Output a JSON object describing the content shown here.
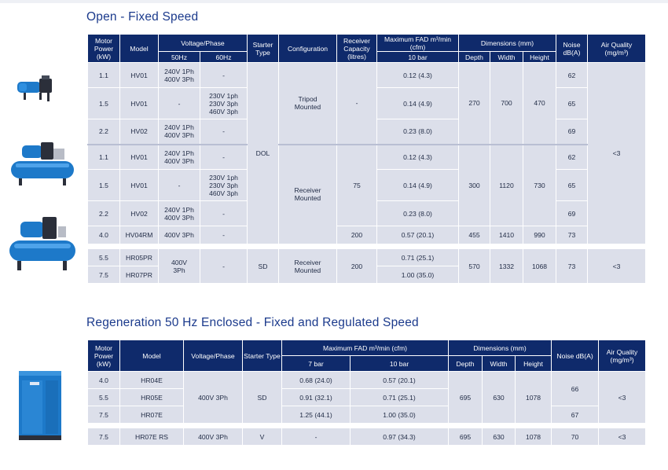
{
  "section1": {
    "title": "Open - Fixed Speed",
    "headers": {
      "motor_power": "Motor Power (kW)",
      "model": "Model",
      "voltage_phase": "Voltage/Phase",
      "hz50": "50Hz",
      "hz60": "60Hz",
      "starter_type": "Starter Type",
      "configuration": "Configuration",
      "receiver_capacity": "Receiver Capacity (litres)",
      "max_fad": "Maximum FAD m³/min (cfm)",
      "bar10": "10 bar",
      "dimensions": "Dimensions (mm)",
      "depth": "Depth",
      "width": "Width",
      "height": "Height",
      "noise": "Noise dB(A)",
      "air_quality": "Air Quality (mg/m³)"
    },
    "rows": [
      {
        "power": "1.1",
        "model": "HV01",
        "v50": "240V 1Ph\n400V 3Ph",
        "v60": "-",
        "fad": "0.12 (4.3)",
        "noise": "62"
      },
      {
        "power": "1.5",
        "model": "HV01",
        "v50": "-",
        "v60": "230V 1ph\n230V 3ph\n460V 3ph",
        "fad": "0.14 (4.9)",
        "noise": "65"
      },
      {
        "power": "2.2",
        "model": "HV02",
        "v50": "240V 1Ph\n400V 3Ph",
        "v60": "-",
        "fad": "0.23 (8.0)",
        "noise": "69"
      },
      {
        "power": "1.1",
        "model": "HV01",
        "v50": "240V 1Ph\n400V 3Ph",
        "v60": "-",
        "fad": "0.12 (4.3)",
        "noise": "62"
      },
      {
        "power": "1.5",
        "model": "HV01",
        "v50": "-",
        "v60": "230V 1ph\n230V 3ph\n460V 3ph",
        "fad": "0.14 (4.9)",
        "noise": "65"
      },
      {
        "power": "2.2",
        "model": "HV02",
        "v50": "240V 1Ph\n400V 3Ph",
        "v60": "-",
        "fad": "0.23 (8.0)",
        "noise": "69"
      },
      {
        "power": "4.0",
        "model": "HV04RM",
        "v50": "400V 3Ph",
        "v60": "-",
        "fad": "0.57 (20.1)",
        "noise": "73"
      }
    ],
    "starter_dol": "DOL",
    "config_tripod": "Tripod\nMounted",
    "config_receiver": "Receiver\nMounted",
    "receiver_dash": "-",
    "receiver_75": "75",
    "receiver_200": "200",
    "dims_a": {
      "depth": "270",
      "width": "700",
      "height": "470"
    },
    "dims_b": {
      "depth": "300",
      "width": "1120",
      "height": "730"
    },
    "dims_c": {
      "depth": "455",
      "width": "1410",
      "height": "990"
    },
    "air_quality_main": "<3",
    "group2": {
      "rows": [
        {
          "power": "5.5",
          "model": "HR05PR",
          "fad": "0.71 (25.1)"
        },
        {
          "power": "7.5",
          "model": "HR07PR",
          "fad": "1.00 (35.0)"
        }
      ],
      "v50": "400V\n3Ph",
      "v60": "-",
      "starter": "SD",
      "configuration": "Receiver\nMounted",
      "receiver": "200",
      "depth": "570",
      "width": "1332",
      "height": "1068",
      "noise": "73",
      "air_quality": "<3"
    }
  },
  "section2": {
    "title": "Regeneration 50 Hz Enclosed - Fixed and Regulated Speed",
    "headers": {
      "motor_power": "Motor Power (kW)",
      "model": "Model",
      "voltage_phase": "Voltage/Phase",
      "starter_type": "Starter Type",
      "max_fad": "Maximum FAD m³/min (cfm)",
      "bar7": "7 bar",
      "bar10": "10 bar",
      "dimensions": "Dimensions (mm)",
      "depth": "Depth",
      "width": "Width",
      "height": "Height",
      "noise": "Noise dB(A)",
      "air_quality": "Air Quality (mg/m³)"
    },
    "rows": [
      {
        "power": "4.0",
        "model": "HR04E",
        "bar7": "0.68 (24.0)",
        "bar10": "0.57 (20.1)"
      },
      {
        "power": "5.5",
        "model": "HR05E",
        "bar7": "0.91 (32.1)",
        "bar10": "0.71 (25.1)"
      },
      {
        "power": "7.5",
        "model": "HR07E",
        "bar7": "1.25 (44.1)",
        "bar10": "1.00 (35.0)"
      }
    ],
    "voltage": "400V 3Ph",
    "starter": "SD",
    "depth": "695",
    "width": "630",
    "height": "1078",
    "noise_a": "66",
    "noise_b": "67",
    "air_quality": "<3",
    "last_row": {
      "power": "7.5",
      "model": "HR07E RS",
      "voltage": "400V 3Ph",
      "starter": "V",
      "bar7": "-",
      "bar10": "0.97 (34.3)",
      "depth": "695",
      "width": "630",
      "height": "1078",
      "noise": "70",
      "air_quality": "<3"
    }
  },
  "colors": {
    "header_bg": "#0f2a6b",
    "cell_bg": "#dcdfea",
    "title": "#1b3a8c",
    "product_blue": "#1d79c9"
  }
}
